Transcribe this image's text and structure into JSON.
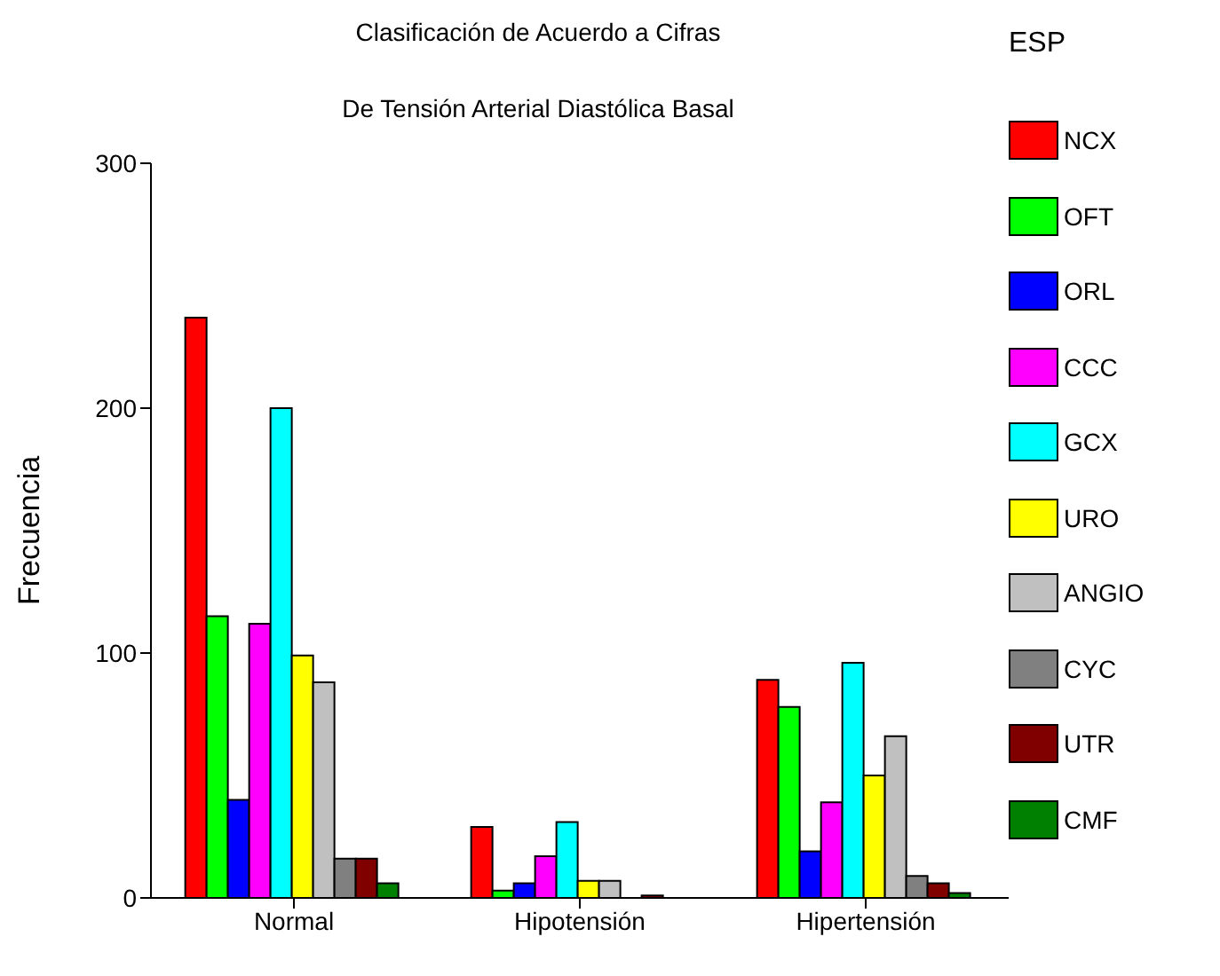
{
  "chart_data": {
    "type": "bar",
    "title": "Clasificación de Acuerdo a Cifras",
    "subtitle": "De Tensión Arterial Diastólica Basal",
    "ylabel": "Frecuencia",
    "legend_title": "ESP",
    "legend": "right",
    "categories": [
      "Normal",
      "Hipotensión",
      "Hipertensión"
    ],
    "ylim": [
      0,
      300
    ],
    "yticks": [
      0,
      100,
      200,
      300
    ],
    "series": [
      {
        "name": "NCX",
        "color": "#ff0000",
        "values": [
          237,
          29,
          89
        ]
      },
      {
        "name": "OFT",
        "color": "#00ff00",
        "values": [
          115,
          3,
          78
        ]
      },
      {
        "name": "ORL",
        "color": "#0000ff",
        "values": [
          40,
          6,
          19
        ]
      },
      {
        "name": "CCC",
        "color": "#ff00ff",
        "values": [
          112,
          17,
          39
        ]
      },
      {
        "name": "GCX",
        "color": "#00ffff",
        "values": [
          200,
          31,
          96
        ]
      },
      {
        "name": "URO",
        "color": "#ffff00",
        "values": [
          99,
          7,
          50
        ]
      },
      {
        "name": "ANGIO",
        "color": "#c0c0c0",
        "values": [
          88,
          7,
          66
        ]
      },
      {
        "name": "CYC",
        "color": "#808080",
        "values": [
          16,
          0,
          9
        ]
      },
      {
        "name": "UTR",
        "color": "#800000",
        "values": [
          16,
          1,
          6
        ]
      },
      {
        "name": "CMF",
        "color": "#008000",
        "values": [
          6,
          0,
          2
        ]
      }
    ]
  }
}
